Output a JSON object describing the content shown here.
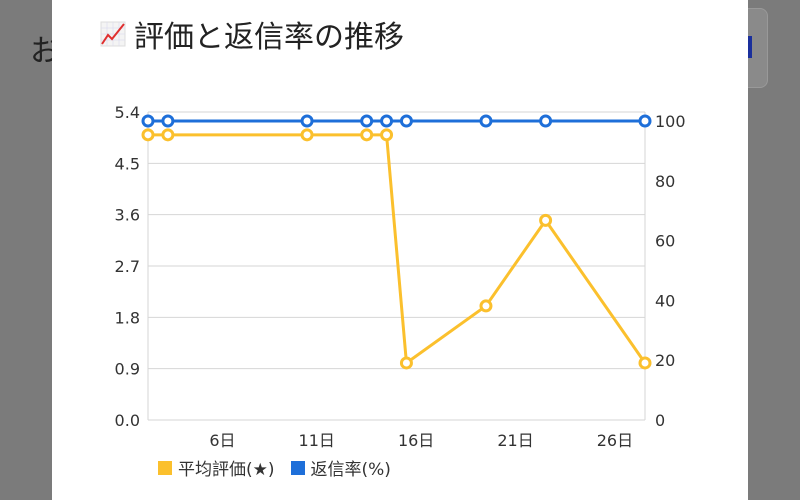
{
  "background": {
    "partial_text": "お"
  },
  "modal": {
    "title": "評価と返信率の推移",
    "title_icon": "chart-increasing-icon"
  },
  "chart_data": {
    "type": "line",
    "title": "評価と返信率の推移",
    "x": [
      2,
      3,
      10,
      13,
      14,
      15,
      19,
      22,
      27
    ],
    "xlim": [
      2,
      27
    ],
    "x_ticks": [
      6,
      11,
      16,
      21,
      26
    ],
    "x_tick_labels": [
      "6日",
      "11日",
      "16日",
      "21日",
      "26日"
    ],
    "y_left": {
      "ylim": [
        0,
        5.4
      ],
      "ticks": [
        "0.0",
        "0.9",
        "1.8",
        "2.7",
        "3.6",
        "4.5",
        "5.4"
      ]
    },
    "y_right": {
      "ylim": [
        0,
        103
      ],
      "ticks": [
        "0",
        "20",
        "40",
        "60",
        "80",
        "100"
      ]
    },
    "grid": true,
    "legend_position": "bottom-left",
    "series": [
      {
        "name": "平均評価(★)",
        "axis": "left",
        "color": "#fbc02d",
        "values": [
          5.0,
          5.0,
          5.0,
          5.0,
          5.0,
          1.0,
          2.0,
          3.5,
          1.0
        ]
      },
      {
        "name": "返信率(%)",
        "axis": "right",
        "color": "#1e6fd9",
        "values": [
          100,
          100,
          100,
          100,
          100,
          100,
          100,
          100,
          100
        ]
      }
    ]
  }
}
